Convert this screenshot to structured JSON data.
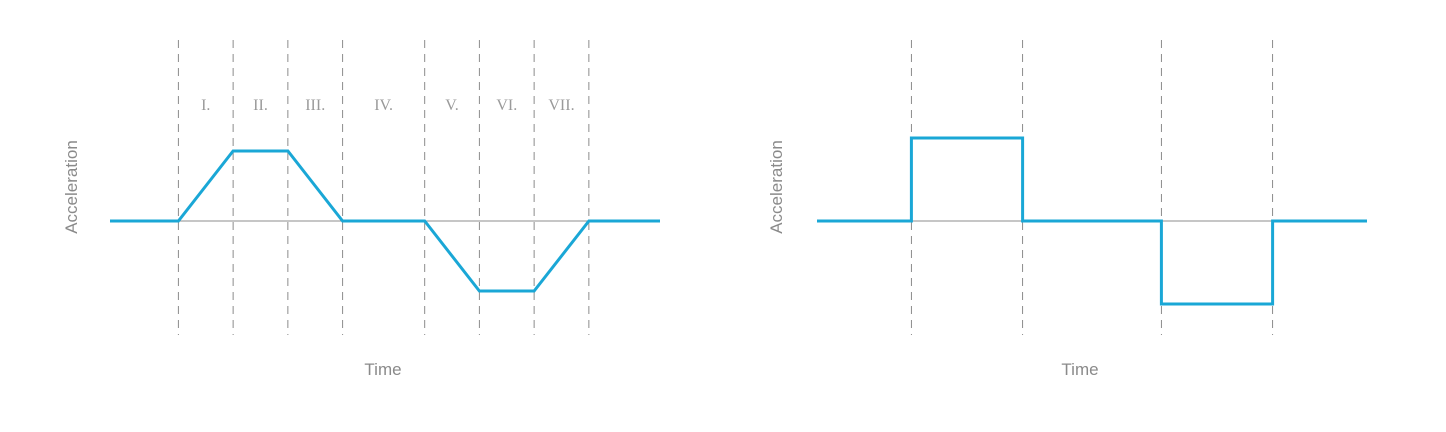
{
  "colors": {
    "curve": "#1aa7d6"
  },
  "chart_data": [
    {
      "type": "line",
      "ylabel": "Acceleration",
      "xlabel": "Time",
      "phases": [
        "I.",
        "II.",
        "III.",
        "IV.",
        "V.",
        "VI.",
        "VII."
      ],
      "phase_boundaries": [
        0,
        1,
        2,
        3,
        4.5,
        5.5,
        6.5,
        7.5
      ],
      "xlim": [
        -1.25,
        8.8
      ],
      "ylim": [
        -1.1,
        1.1
      ],
      "series": [
        {
          "x": [
            -1.25,
            0,
            1,
            2,
            3,
            4.5,
            5.5,
            6.5,
            7.5,
            8.8
          ],
          "y": [
            0,
            0,
            1,
            1,
            0,
            0,
            -1,
            -1,
            0,
            0
          ]
        }
      ]
    },
    {
      "type": "line",
      "ylabel": "Acceleration",
      "xlabel": "Time",
      "phase_boundaries": [
        0,
        1,
        2.25,
        3.25
      ],
      "xlim": [
        -0.85,
        4.1
      ],
      "ylim": [
        -1.1,
        1.1
      ],
      "series": [
        {
          "x": [
            -0.85,
            0,
            0,
            1,
            1,
            2.25,
            2.25,
            3.25,
            3.25,
            4.1
          ],
          "y": [
            0,
            0,
            1,
            1,
            0,
            0,
            -1,
            -1,
            0,
            0
          ]
        }
      ]
    }
  ]
}
